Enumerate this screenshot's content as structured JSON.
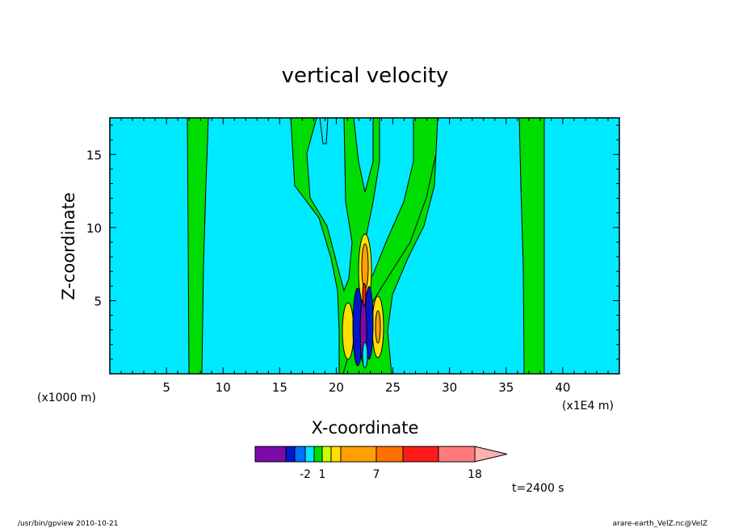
{
  "chart_data": {
    "type": "heatmap",
    "title": "vertical velocity",
    "xlabel": "X-coordinate",
    "ylabel": "Z-coordinate",
    "x_unit_left": "(x1000 m)",
    "x_unit_right": "(x1E4 m)",
    "xlim": [
      0,
      45
    ],
    "ylim": [
      0,
      17.5
    ],
    "x_ticks": [
      5,
      10,
      15,
      20,
      25,
      30,
      35,
      40
    ],
    "y_ticks": [
      5,
      10,
      15
    ],
    "time_label": "t=2400 s",
    "colorbar": {
      "tick_labels": [
        {
          "after_level": 3,
          "label": "-2"
        },
        {
          "after_level": 5,
          "label": "1"
        },
        {
          "after_level": 8,
          "label": "7"
        },
        {
          "after_level": 11,
          "label": "18"
        }
      ],
      "colors": [
        "#7b0aa8",
        "#0018cc",
        "#0070ff",
        "#00e6ff",
        "#00dd00",
        "#c8ff00",
        "#ffe000",
        "#ffa000",
        "#ff7000",
        "#ff1a1a",
        "#ff7b7b",
        "#ffb0b0"
      ]
    },
    "background_level_color": "#00eaff",
    "features": [
      {
        "name": "band-left",
        "x": [
          7.0,
          8.2
        ],
        "color": "#00dd00"
      },
      {
        "name": "band-right",
        "x": [
          36.5,
          38.2
        ],
        "color": "#00dd00"
      },
      {
        "name": "central-plume",
        "center_x": 22.5,
        "color": "#00dd00"
      }
    ]
  },
  "footer": {
    "left": "/usr/bin/gpview  2010-10-21",
    "right": "arare-earth_VelZ.nc@VelZ"
  }
}
